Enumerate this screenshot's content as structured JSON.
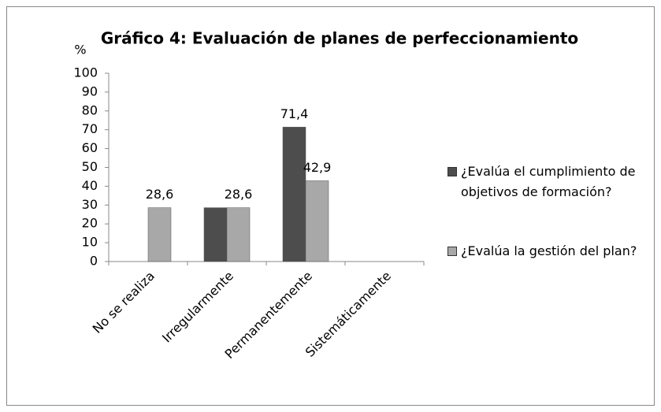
{
  "chart_data": {
    "type": "bar",
    "title": "Gráfico 4: Evaluación de planes de perfeccionamiento",
    "y_label": "%",
    "categories": [
      "No se realiza",
      "Irregularmente",
      "Permanentemente",
      "Sistemáticamente"
    ],
    "series": [
      {
        "name": "¿Evalúa el cumplimiento de objetivos de formación?",
        "color": "#4d4d4d",
        "values": [
          0,
          28.6,
          71.4,
          0
        ],
        "value_labels": [
          null,
          null,
          "71,4",
          null
        ]
      },
      {
        "name": "¿Evalúa la gestión del plan?",
        "color": "#a8a8a8",
        "values": [
          28.6,
          28.6,
          42.9,
          0
        ],
        "value_labels": [
          "28,6",
          "28,6",
          "42,9",
          null
        ]
      }
    ],
    "ylim": [
      0,
      100
    ],
    "yticks": [
      0,
      10,
      20,
      30,
      40,
      50,
      60,
      70,
      80,
      90,
      100
    ],
    "legend": "right"
  }
}
